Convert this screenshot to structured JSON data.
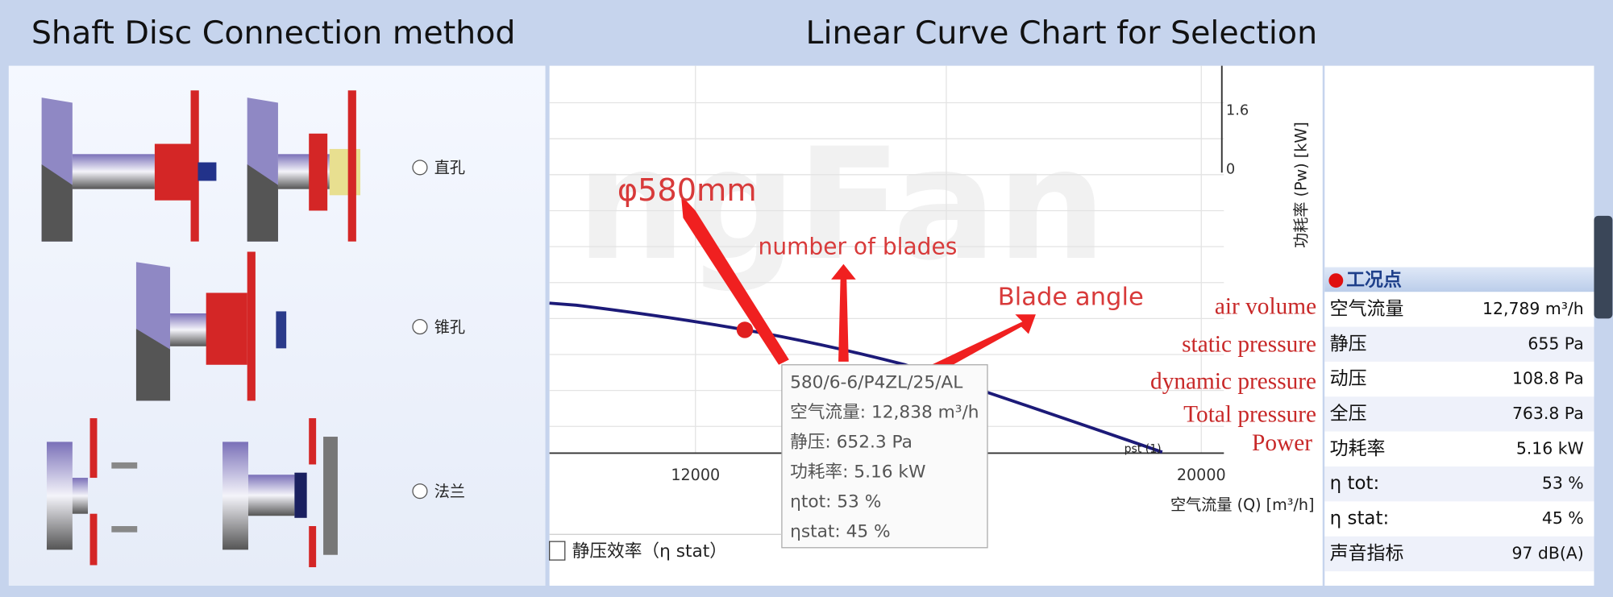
{
  "header": {
    "left_title": "Shaft Disc Connection method",
    "right_title": "Linear Curve Chart for Selection"
  },
  "connection": {
    "options": [
      "直孔",
      "锥孔",
      "法兰"
    ]
  },
  "chart": {
    "watermark": "ngFan",
    "x_ticks": [
      "12000",
      "20000"
    ],
    "y_ticks": [
      "1.6",
      "0"
    ],
    "x_axis_label": "空气流量 (Q) [m³/h]",
    "y_axis_label": "功耗率 (Pw) [kW]",
    "curve_label": "pst (1)",
    "annotations": [
      "φ580mm",
      "number of blades",
      "Blade angle"
    ],
    "legend": [
      "air volume",
      "static pressure",
      "dynamic pressure",
      "Total pressure",
      "Power"
    ],
    "tooltip": [
      "580/6-6/P4ZL/25/AL",
      "空气流量: 12,838 m³/h",
      "静压: 652.3 Pa",
      "功耗率: 5.16 kW",
      "ηtot: 53 %",
      "ηstat: 45 %"
    ],
    "checkbox_label": "静压效率（η stat）"
  },
  "operating_point": {
    "title": "工况点",
    "rows": [
      [
        "空气流量",
        "12,789 m³/h"
      ],
      [
        "静压",
        "655 Pa"
      ],
      [
        "动压",
        "108.8 Pa"
      ],
      [
        "全压",
        "763.8 Pa"
      ],
      [
        "功耗率",
        "5.16 kW"
      ],
      [
        "η tot:",
        "53 %"
      ],
      [
        "η stat:",
        "45 %"
      ],
      [
        "声音指标",
        "97 dB(A)"
      ]
    ]
  }
}
